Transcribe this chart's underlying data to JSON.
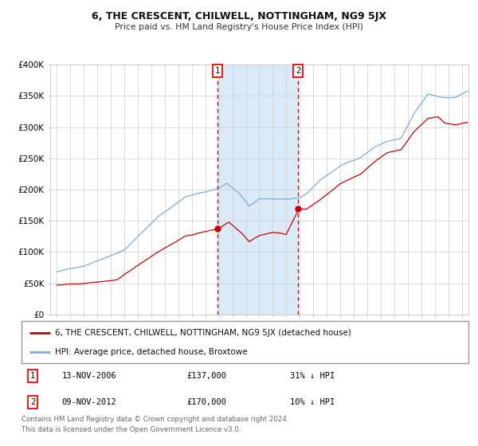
{
  "title": "6, THE CRESCENT, CHILWELL, NOTTINGHAM, NG9 5JX",
  "subtitle": "Price paid vs. HM Land Registry's House Price Index (HPI)",
  "sale1_date_label": "13-NOV-2006",
  "sale1_price": 137000,
  "sale1_label": "1",
  "sale1_pct": "31% ↓ HPI",
  "sale1_year": 2006.875,
  "sale2_date_label": "09-NOV-2012",
  "sale2_price": 170000,
  "sale2_label": "2",
  "sale2_pct": "10% ↓ HPI",
  "sale2_year": 2012.875,
  "legend_red": "6, THE CRESCENT, CHILWELL, NOTTINGHAM, NG9 5JX (detached house)",
  "legend_blue": "HPI: Average price, detached house, Broxtowe",
  "footnote_line1": "Contains HM Land Registry data © Crown copyright and database right 2024.",
  "footnote_line2": "This data is licensed under the Open Government Licence v3.0.",
  "table_row1": [
    "1",
    "13-NOV-2006",
    "£137,000",
    "31% ↓ HPI"
  ],
  "table_row2": [
    "2",
    "09-NOV-2012",
    "£170,000",
    "10% ↓ HPI"
  ],
  "ylim": [
    0,
    400000
  ],
  "xlim_left": 1994.5,
  "xlim_right": 2025.5,
  "red_color": "#cc0000",
  "blue_color": "#7aade0",
  "shade_color": "#daeaf7",
  "grid_color": "#cccccc",
  "bg_color": "#ffffff",
  "blue_kp_x": [
    1995.0,
    1997.0,
    2000.0,
    2002.5,
    2004.5,
    2006.917,
    2007.583,
    2008.5,
    2009.25,
    2010.0,
    2012.917,
    2013.5,
    2014.5,
    2016.0,
    2017.5,
    2018.5,
    2019.5,
    2020.5,
    2021.5,
    2022.5,
    2023.5,
    2024.5,
    2025.5
  ],
  "blue_kp_y": [
    68000,
    78000,
    105000,
    158000,
    190000,
    203000,
    212000,
    196000,
    175000,
    186000,
    186000,
    193000,
    215000,
    238000,
    252000,
    268000,
    278000,
    282000,
    322000,
    352000,
    347000,
    347000,
    358000
  ],
  "red_kp_x": [
    1995.0,
    1997.0,
    1999.5,
    2000.5,
    2002.5,
    2004.5,
    2006.917,
    2007.5,
    2007.75,
    2008.75,
    2009.25,
    2010.0,
    2011.0,
    2012.0,
    2012.917,
    2013.5,
    2014.5,
    2016.0,
    2017.5,
    2018.5,
    2019.5,
    2020.5,
    2021.5,
    2022.5,
    2023.25,
    2023.75,
    2024.5,
    2025.5
  ],
  "red_kp_y": [
    47000,
    49000,
    55000,
    70000,
    100000,
    125000,
    137000,
    145000,
    148000,
    130000,
    118000,
    128000,
    133000,
    130000,
    170000,
    170000,
    185000,
    210000,
    225000,
    245000,
    260000,
    265000,
    295000,
    315000,
    318000,
    308000,
    305000,
    310000
  ]
}
